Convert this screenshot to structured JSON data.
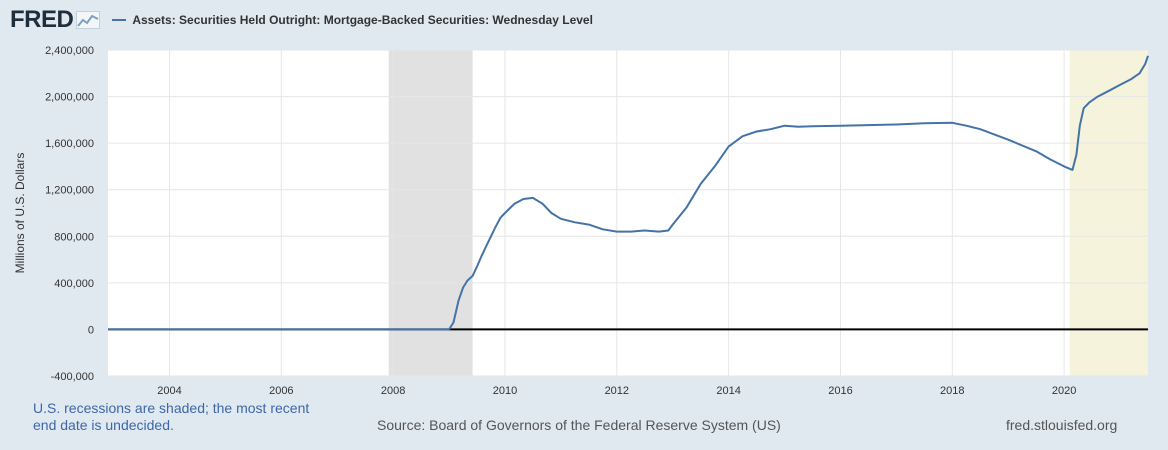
{
  "header": {
    "logo_text": "FRED",
    "legend_label": "Assets: Securities Held Outright: Mortgage-Backed Securities: Wednesday Level"
  },
  "footer": {
    "note": "U.S. recessions are shaded; the most recent end date is undecided.",
    "source": "Source: Board of Governors of the Federal Reserve System (US)",
    "site": "fred.stlouisfed.org"
  },
  "chart_data": {
    "type": "line",
    "title": "",
    "ylabel": "Millions of U.S. Dollars",
    "xlabel": "",
    "ylim": [
      -400000,
      2400000
    ],
    "xlim": [
      2002.9,
      2021.5
    ],
    "yticks": [
      -400000,
      0,
      400000,
      800000,
      1200000,
      1600000,
      2000000,
      2400000
    ],
    "ytick_labels": [
      "-400,000",
      "0",
      "400,000",
      "800,000",
      "1,200,000",
      "1,600,000",
      "2,000,000",
      "2,400,000"
    ],
    "xticks": [
      2004,
      2006,
      2008,
      2010,
      2012,
      2014,
      2016,
      2018,
      2020
    ],
    "xtick_labels": [
      "2004",
      "2006",
      "2008",
      "2010",
      "2012",
      "2014",
      "2016",
      "2018",
      "2020"
    ],
    "grid": true,
    "recessions": [
      {
        "start": 2007.92,
        "end": 2009.42,
        "color": "#e1e1e1"
      },
      {
        "start": 2020.1,
        "end": 2021.5,
        "color": "#f5f3dc"
      }
    ],
    "zero_line": true,
    "series": [
      {
        "color": "#4572a7",
        "x": [
          2002.9,
          2009.0,
          2009.08,
          2009.17,
          2009.25,
          2009.33,
          2009.42,
          2009.5,
          2009.58,
          2009.67,
          2009.75,
          2009.83,
          2009.92,
          2010.0,
          2010.17,
          2010.33,
          2010.5,
          2010.67,
          2010.83,
          2011.0,
          2011.25,
          2011.5,
          2011.75,
          2012.0,
          2012.25,
          2012.5,
          2012.75,
          2012.92,
          2013.0,
          2013.25,
          2013.5,
          2013.75,
          2014.0,
          2014.25,
          2014.5,
          2014.75,
          2015.0,
          2015.25,
          2015.5,
          2016.0,
          2016.5,
          2017.0,
          2017.5,
          2018.0,
          2018.25,
          2018.5,
          2019.0,
          2019.5,
          2019.75,
          2020.0,
          2020.15,
          2020.22,
          2020.28,
          2020.35,
          2020.45,
          2020.6,
          2020.8,
          2021.0,
          2021.2,
          2021.35,
          2021.45,
          2021.5
        ],
        "values": [
          0,
          0,
          60000,
          250000,
          360000,
          420000,
          460000,
          540000,
          630000,
          720000,
          800000,
          880000,
          960000,
          1000000,
          1080000,
          1120000,
          1130000,
          1080000,
          1000000,
          950000,
          920000,
          900000,
          860000,
          840000,
          840000,
          850000,
          840000,
          850000,
          900000,
          1050000,
          1250000,
          1400000,
          1570000,
          1660000,
          1700000,
          1720000,
          1750000,
          1740000,
          1745000,
          1750000,
          1755000,
          1760000,
          1770000,
          1775000,
          1750000,
          1720000,
          1630000,
          1530000,
          1460000,
          1400000,
          1370000,
          1500000,
          1750000,
          1900000,
          1950000,
          2000000,
          2050000,
          2100000,
          2150000,
          2200000,
          2280000,
          2350000
        ]
      }
    ]
  }
}
